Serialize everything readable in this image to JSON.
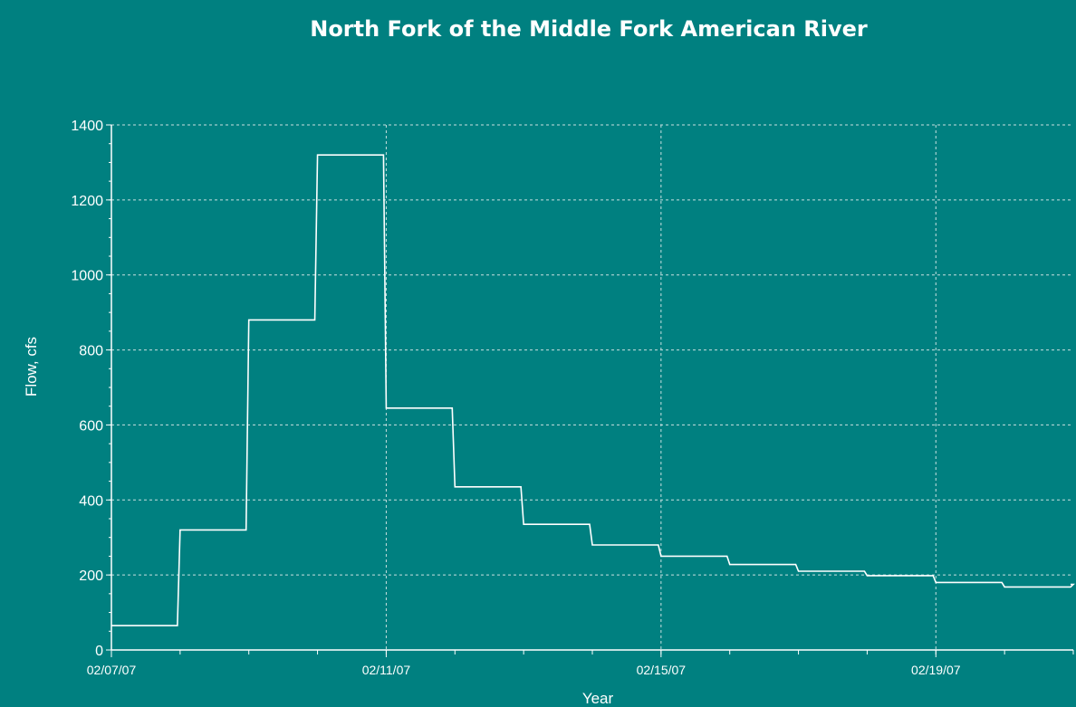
{
  "chart_data": {
    "type": "line",
    "title": "North Fork of the Middle Fork American River",
    "xlabel": "Year",
    "ylabel": "Flow, cfs",
    "x_tick_labels": [
      "02/07/07",
      "02/11/07",
      "02/15/07",
      "02/19/07"
    ],
    "y_tick_labels": [
      "0",
      "200",
      "400",
      "600",
      "800",
      "1000",
      "1200",
      "1400"
    ],
    "xlim": [
      "2007-02-07",
      "2007-02-21"
    ],
    "ylim": [
      0,
      1400
    ],
    "grid": true,
    "series": [
      {
        "x": [
          "2007-02-07",
          "2007-02-08",
          "2007-02-09",
          "2007-02-10",
          "2007-02-11",
          "2007-02-12",
          "2007-02-13",
          "2007-02-14",
          "2007-02-15",
          "2007-02-16",
          "2007-02-17",
          "2007-02-18",
          "2007-02-19",
          "2007-02-20",
          "2007-02-21"
        ],
        "values": [
          65,
          320,
          880,
          1320,
          645,
          435,
          335,
          280,
          250,
          228,
          210,
          198,
          180,
          168,
          175
        ]
      }
    ]
  },
  "colors": {
    "background": "#008080",
    "line": "#ffffff",
    "grid": "#c8e0e0"
  }
}
